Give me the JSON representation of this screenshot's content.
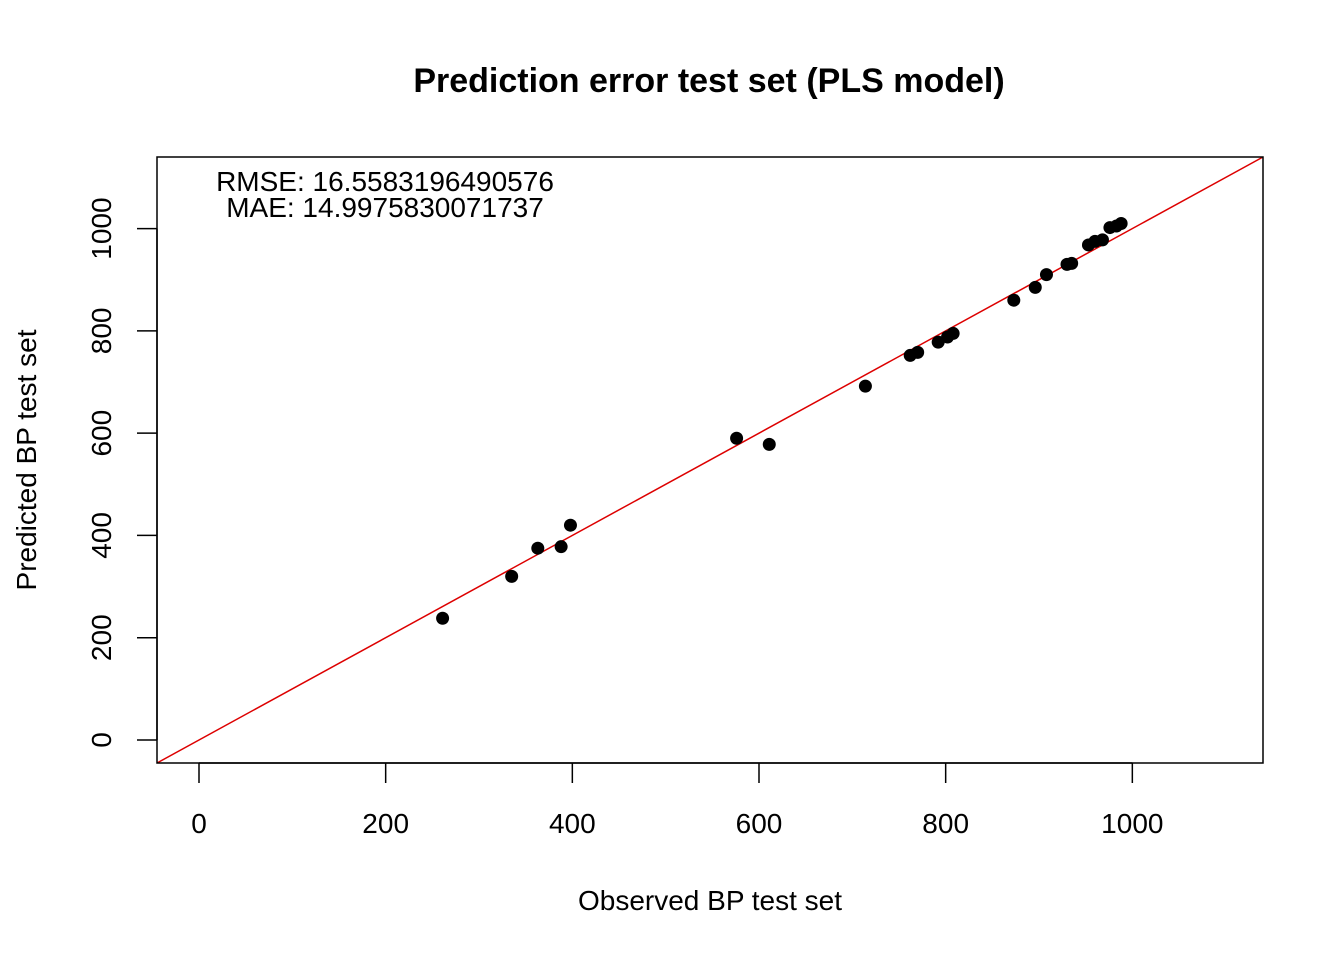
{
  "chart_data": {
    "type": "scatter",
    "title": "Prediction error test set (PLS model)",
    "xlabel": "Observed BP test set",
    "ylabel": "Predicted BP test set",
    "xlim": [
      -45,
      1140
    ],
    "ylim": [
      -45,
      1140
    ],
    "xticks": [
      0,
      200,
      400,
      600,
      800,
      1000
    ],
    "yticks": [
      0,
      200,
      400,
      600,
      800,
      1000
    ],
    "grid": false,
    "reference_line": {
      "type": "identity",
      "slope": 1,
      "intercept": 0,
      "color": "#DD0000"
    },
    "point_color": "#000000",
    "annotations": {
      "rmse": "RMSE:  16.5583196490576",
      "mae": "MAE:  14.9975830071737"
    },
    "points": [
      {
        "x": 261,
        "y": 238
      },
      {
        "x": 335,
        "y": 320
      },
      {
        "x": 363,
        "y": 375
      },
      {
        "x": 388,
        "y": 378
      },
      {
        "x": 398,
        "y": 420
      },
      {
        "x": 576,
        "y": 590
      },
      {
        "x": 611,
        "y": 578
      },
      {
        "x": 714,
        "y": 692
      },
      {
        "x": 762,
        "y": 752
      },
      {
        "x": 770,
        "y": 758
      },
      {
        "x": 792,
        "y": 778
      },
      {
        "x": 802,
        "y": 788
      },
      {
        "x": 808,
        "y": 795
      },
      {
        "x": 873,
        "y": 860
      },
      {
        "x": 896,
        "y": 885
      },
      {
        "x": 908,
        "y": 910
      },
      {
        "x": 930,
        "y": 930
      },
      {
        "x": 935,
        "y": 932
      },
      {
        "x": 953,
        "y": 968
      },
      {
        "x": 960,
        "y": 975
      },
      {
        "x": 968,
        "y": 978
      },
      {
        "x": 976,
        "y": 1002
      },
      {
        "x": 983,
        "y": 1005
      },
      {
        "x": 988,
        "y": 1010
      }
    ]
  }
}
